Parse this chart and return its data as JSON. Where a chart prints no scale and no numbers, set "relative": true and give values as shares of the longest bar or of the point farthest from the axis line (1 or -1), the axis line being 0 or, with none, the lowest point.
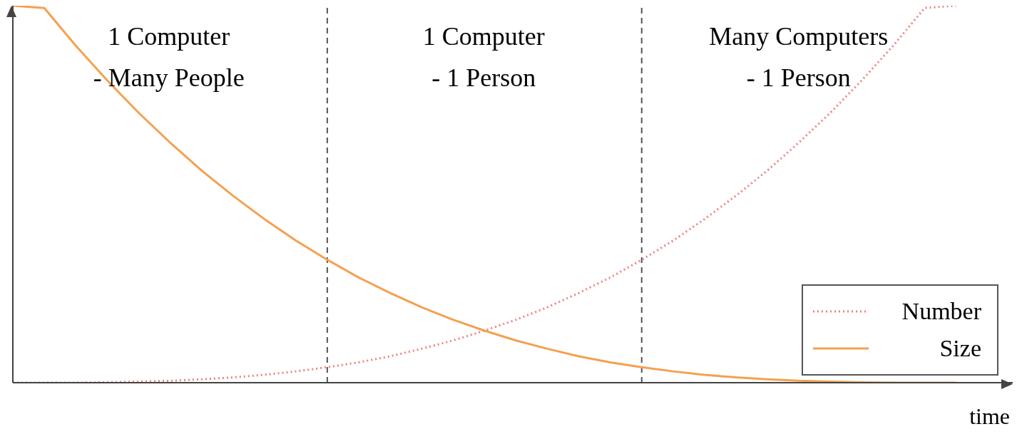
{
  "chart_data": {
    "type": "line",
    "relative": true,
    "xlabel": "time",
    "categories": [
      null,
      null,
      null,
      null,
      null,
      null,
      null,
      null,
      null,
      null,
      null,
      null,
      null,
      null,
      null,
      null,
      null,
      null,
      null,
      null,
      null,
      null,
      null,
      null,
      null,
      null,
      null,
      null,
      null,
      null,
      null
    ],
    "series": [
      {
        "name": "Number",
        "color": "#f08080",
        "line_style": "dotted",
        "values": [
          0,
          0,
          0,
          0.001,
          0.003,
          0.005,
          0.009,
          0.014,
          0.021,
          0.03,
          0.041,
          0.054,
          0.07,
          0.09,
          0.112,
          0.138,
          0.167,
          0.2,
          0.238,
          0.279,
          0.326,
          0.377,
          0.434,
          0.496,
          0.563,
          0.637,
          0.716,
          0.802,
          0.894,
          0.994,
          1
        ]
      },
      {
        "name": "Size",
        "color": "#f5a050",
        "line_style": "solid",
        "values": [
          1,
          0.994,
          0.894,
          0.802,
          0.716,
          0.637,
          0.563,
          0.496,
          0.434,
          0.377,
          0.326,
          0.279,
          0.238,
          0.2,
          0.167,
          0.138,
          0.112,
          0.09,
          0.07,
          0.054,
          0.041,
          0.03,
          0.021,
          0.014,
          0.009,
          0.005,
          0.003,
          0.001,
          0,
          0,
          0
        ]
      }
    ],
    "annotations": [
      "1 Computer\n- Many People",
      "1 Computer\n- 1 Person",
      "Many Computers\n- 1 Person"
    ],
    "legend": "bottom right",
    "grid": false,
    "marker": "none"
  }
}
